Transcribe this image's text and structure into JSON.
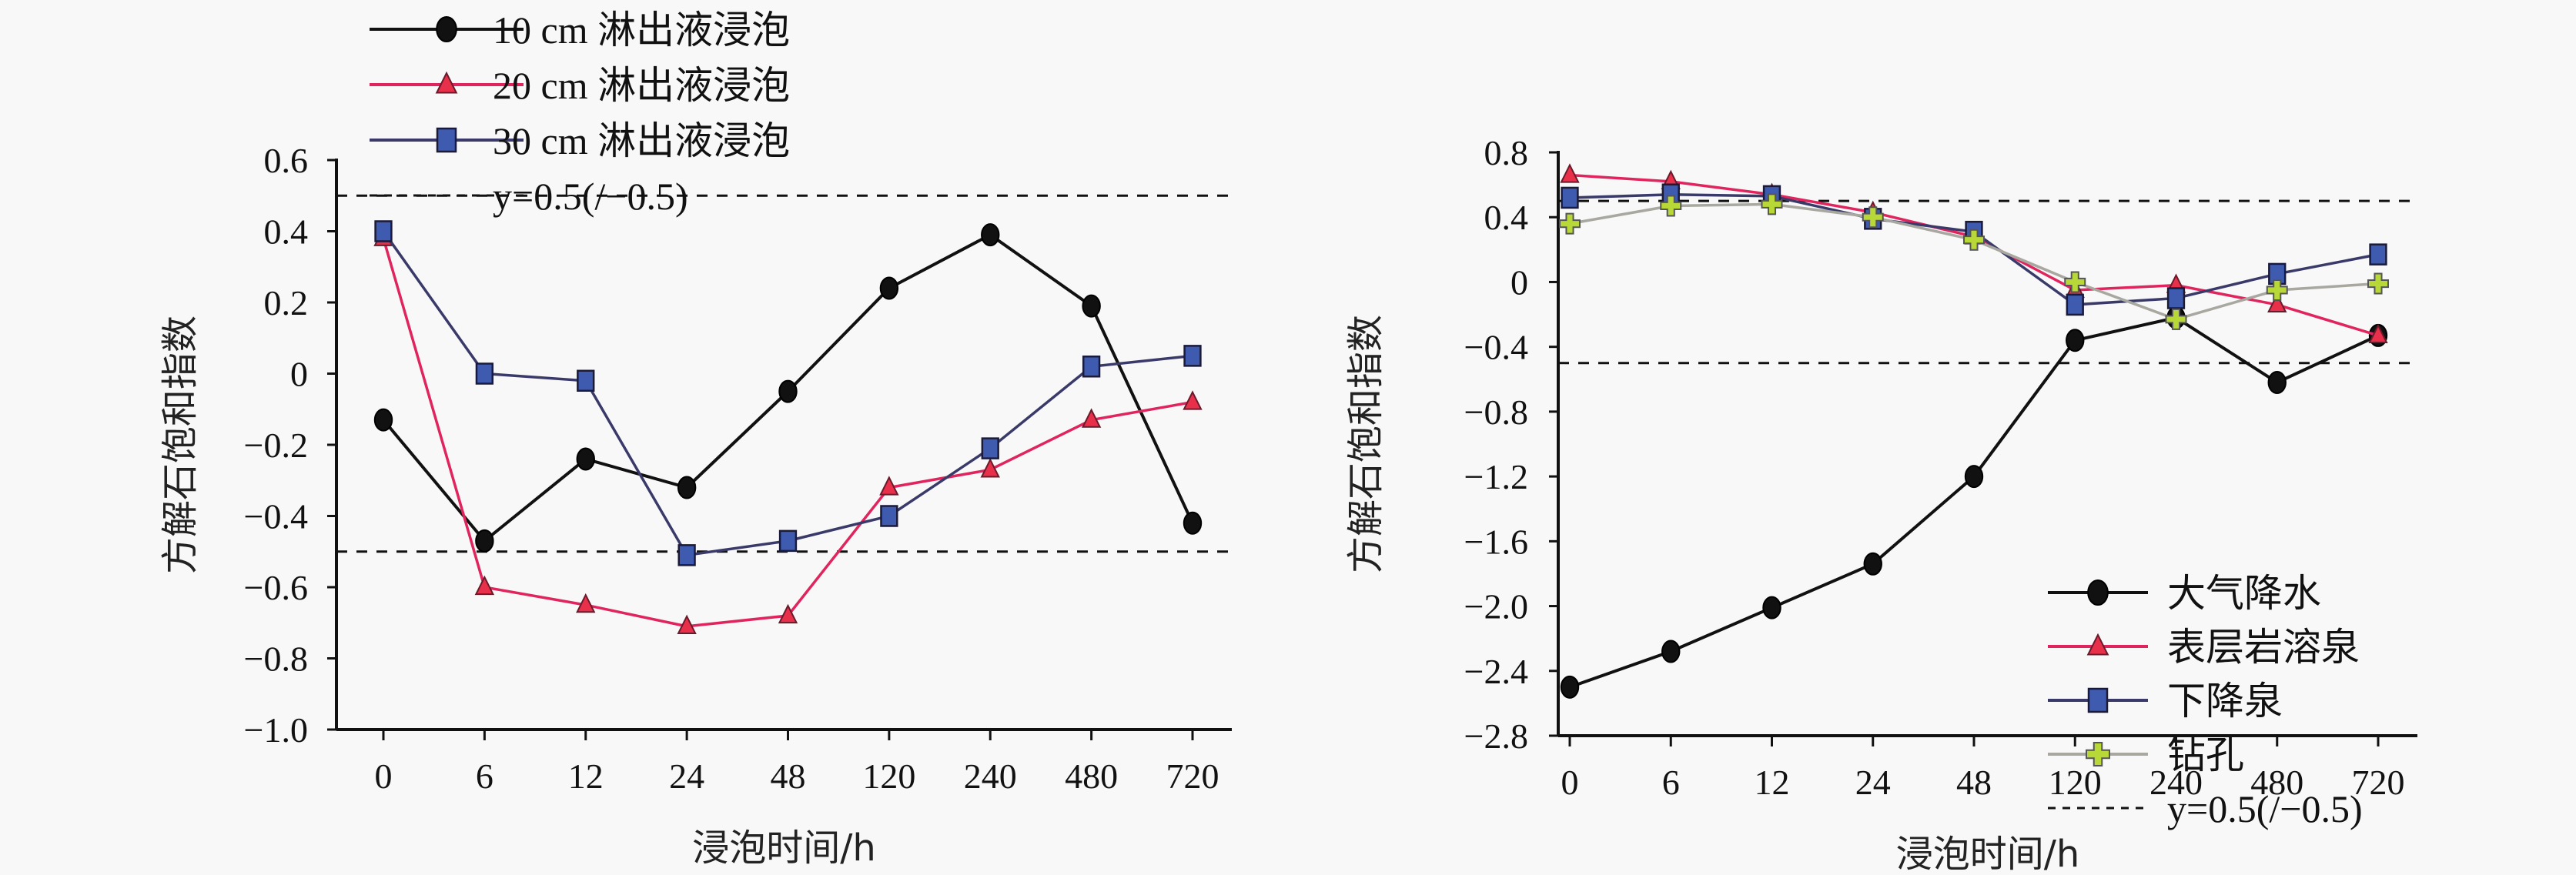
{
  "chart_data": [
    {
      "type": "line",
      "title": "",
      "xlabel": "浸泡时间/h",
      "ylabel": "方解石饱和指数",
      "categories": [
        "0",
        "6",
        "12",
        "24",
        "48",
        "120",
        "240",
        "480",
        "720"
      ],
      "ylim": [
        -1.0,
        0.6
      ],
      "yticks": [
        "0.6",
        "0.4",
        "0.2",
        "0",
        "−0.2",
        "−0.4",
        "−0.6",
        "−0.8",
        "−1.0"
      ],
      "ytick_values": [
        0.6,
        0.4,
        0.2,
        0,
        -0.2,
        -0.4,
        -0.6,
        -0.8,
        -1.0
      ],
      "grid": false,
      "legend_position": "top-left",
      "reference_lines": [
        0.5,
        -0.5
      ],
      "reference_label": "y=0.5(/−0.5)",
      "series": [
        {
          "name": "10 cm 淋出液浸泡",
          "marker": "circle",
          "color": "#111111",
          "fill": "#111111",
          "values": [
            -0.13,
            -0.47,
            -0.24,
            -0.32,
            -0.05,
            0.24,
            0.39,
            0.19,
            -0.42
          ]
        },
        {
          "name": "20 cm 淋出液浸泡",
          "marker": "triangle",
          "color": "#e0245e",
          "fill": "#e8304a",
          "values": [
            0.38,
            -0.6,
            -0.65,
            -0.71,
            -0.68,
            -0.32,
            -0.27,
            -0.13,
            -0.08
          ]
        },
        {
          "name": "30 cm 淋出液浸泡",
          "marker": "square",
          "color": "#3a3a6a",
          "fill": "#3e5bb0",
          "values": [
            0.4,
            0.0,
            -0.02,
            -0.51,
            -0.47,
            -0.4,
            -0.21,
            0.02,
            0.05
          ]
        }
      ]
    },
    {
      "type": "line",
      "title": "",
      "xlabel": "浸泡时间/h",
      "ylabel": "方解石饱和指数",
      "categories": [
        "0",
        "6",
        "12",
        "24",
        "48",
        "120",
        "240",
        "480",
        "720"
      ],
      "ylim": [
        -2.8,
        0.8
      ],
      "yticks": [
        "0.8",
        "0.4",
        "0",
        "−0.4",
        "−0.8",
        "−1.2",
        "−1.6",
        "−2.0",
        "−2.4",
        "−2.8"
      ],
      "ytick_values": [
        0.8,
        0.4,
        0,
        -0.4,
        -0.8,
        -1.2,
        -1.6,
        -2.0,
        -2.4,
        -2.8
      ],
      "grid": false,
      "legend_position": "bottom-right",
      "reference_lines": [
        0.5,
        -0.5
      ],
      "reference_label": "y=0.5(/−0.5)",
      "series": [
        {
          "name": "大气降水",
          "marker": "circle",
          "color": "#111111",
          "fill": "#111111",
          "values": [
            -2.5,
            -2.28,
            -2.01,
            -1.74,
            -1.2,
            -0.36,
            -0.22,
            -0.62,
            -0.33
          ]
        },
        {
          "name": "表层岩溶泉",
          "marker": "triangle",
          "color": "#e0245e",
          "fill": "#e8304a",
          "values": [
            0.66,
            0.62,
            0.54,
            0.43,
            0.28,
            -0.05,
            -0.02,
            -0.14,
            -0.33
          ]
        },
        {
          "name": "下降泉",
          "marker": "square",
          "color": "#3a3a6a",
          "fill": "#3e5bb0",
          "values": [
            0.52,
            0.54,
            0.53,
            0.39,
            0.31,
            -0.14,
            -0.1,
            0.05,
            0.17
          ]
        },
        {
          "name": "钻孔",
          "marker": "plus",
          "color": "#a8a8a0",
          "fill": "#b8d838",
          "values": [
            0.36,
            0.47,
            0.48,
            0.4,
            0.26,
            0.0,
            -0.23,
            -0.05,
            -0.01
          ]
        }
      ]
    }
  ]
}
